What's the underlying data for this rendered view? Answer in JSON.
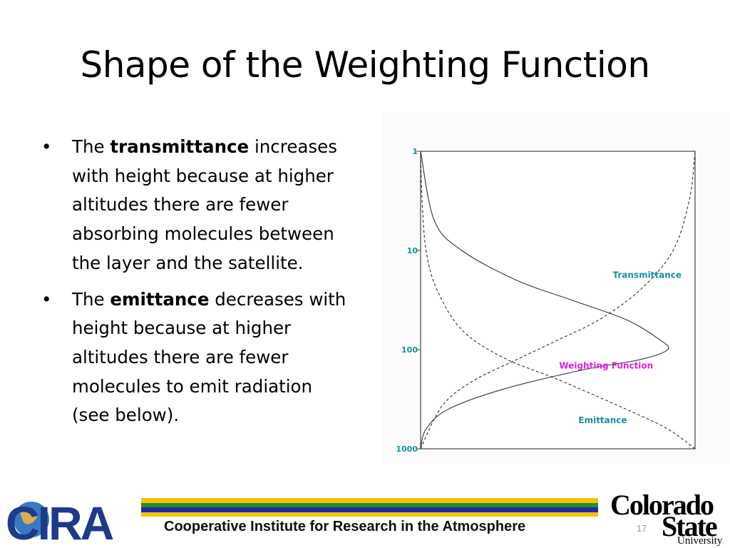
{
  "slide": {
    "title": "Shape of the Weighting Function",
    "page_number": "17"
  },
  "bullets": [
    {
      "before": "The ",
      "bold": "transmittance",
      "after": " increases with height because at higher altitudes there are fewer absorbing molecules between the layer and the satellite."
    },
    {
      "before": "The ",
      "bold": "emittance",
      "after": " decreases with height because at higher altitudes there are fewer molecules to emit radiation (see below)."
    }
  ],
  "footer": {
    "org_name": "Cooperative Institute for Research in the Atmosphere",
    "cira_logo_text": "CIRA",
    "csu_line1": "Colorado",
    "csu_line2": "State",
    "csu_line3": "University",
    "stripe_colors": [
      "#f3c300",
      "#2a8a2a",
      "#1f2aa6",
      "#f3c300"
    ]
  },
  "chart_data": {
    "type": "line",
    "y_scale": "log",
    "y_inverted": true,
    "ylim": [
      1,
      1000
    ],
    "xlim": [
      0,
      1
    ],
    "y_ticks": [
      "1",
      "10",
      "100",
      "1000"
    ],
    "y_tick_values": [
      1,
      10,
      100,
      1000
    ],
    "label_color": "#1a8fa0",
    "weighting_label_color": "#e020e0",
    "series": [
      {
        "name": "Transmittance",
        "style": "dashed",
        "points": [
          [
            0.0,
            1000
          ],
          [
            0.05,
            500
          ],
          [
            0.1,
            316
          ],
          [
            0.2,
            200
          ],
          [
            0.35,
            126
          ],
          [
            0.5,
            80
          ],
          [
            0.65,
            50
          ],
          [
            0.8,
            25
          ],
          [
            0.92,
            10
          ],
          [
            0.98,
            3
          ],
          [
            1.0,
            1
          ]
        ]
      },
      {
        "name": "Emittance",
        "style": "dashed",
        "points": [
          [
            1.0,
            1000
          ],
          [
            0.9,
            630
          ],
          [
            0.75,
            400
          ],
          [
            0.5,
            200
          ],
          [
            0.3,
            120
          ],
          [
            0.15,
            63
          ],
          [
            0.06,
            25
          ],
          [
            0.02,
            10
          ],
          [
            0.005,
            3
          ],
          [
            0.0,
            1
          ]
        ]
      },
      {
        "name": "Weighting Function",
        "style": "solid",
        "points": [
          [
            0.0,
            1000
          ],
          [
            0.02,
            631
          ],
          [
            0.1,
            400
          ],
          [
            0.3,
            251
          ],
          [
            0.6,
            158
          ],
          [
            0.8,
            126
          ],
          [
            0.9,
            100
          ],
          [
            0.87,
            79
          ],
          [
            0.75,
            50
          ],
          [
            0.55,
            31.6
          ],
          [
            0.35,
            20
          ],
          [
            0.15,
            10
          ],
          [
            0.05,
            5
          ],
          [
            0.0,
            1
          ]
        ]
      }
    ]
  }
}
